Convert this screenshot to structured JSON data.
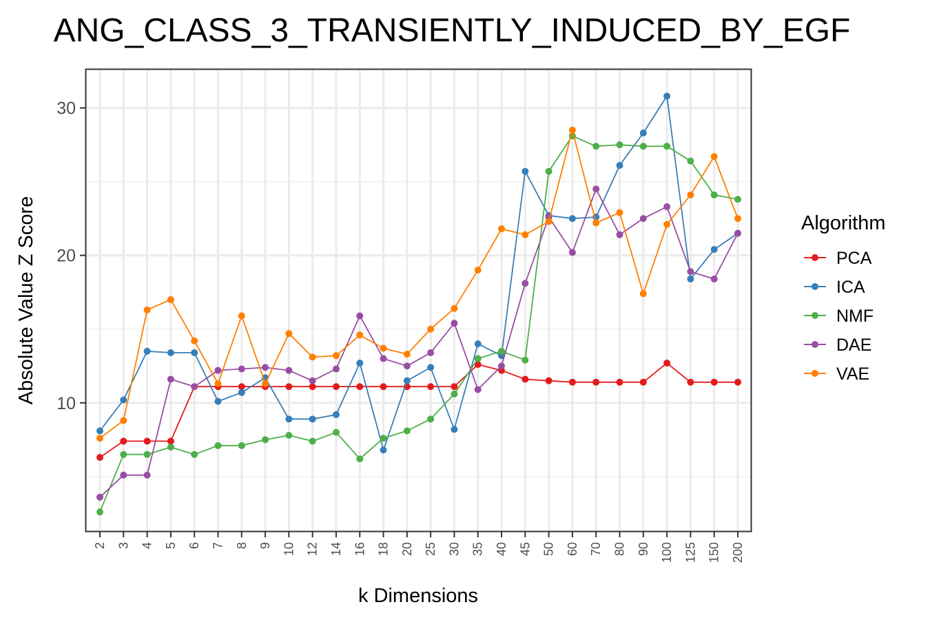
{
  "chart_data": {
    "type": "line",
    "title": "ANG_CLASS_3_TRANSIENTLY_INDUCED_BY_EGF",
    "xlabel": "k Dimensions",
    "ylabel": "Absolute Value Z Score",
    "ylim": [
      1.3,
      32.6
    ],
    "yticks": [
      10,
      20,
      30
    ],
    "grid": true,
    "legend_title": "Algorithm",
    "legend_position": "right",
    "categories": [
      "2",
      "3",
      "4",
      "5",
      "6",
      "7",
      "8",
      "9",
      "10",
      "12",
      "14",
      "16",
      "18",
      "20",
      "25",
      "30",
      "35",
      "40",
      "45",
      "50",
      "60",
      "70",
      "80",
      "90",
      "100",
      "125",
      "150",
      "200"
    ],
    "series": [
      {
        "name": "PCA",
        "color": "#E41A1C",
        "values": [
          6.3,
          7.4,
          7.4,
          7.4,
          11.1,
          11.1,
          11.1,
          11.1,
          11.1,
          11.1,
          11.1,
          11.1,
          11.1,
          11.1,
          11.1,
          11.1,
          12.6,
          12.2,
          11.6,
          11.5,
          11.4,
          11.4,
          11.4,
          11.4,
          12.7,
          11.4,
          11.4,
          11.4
        ]
      },
      {
        "name": "ICA",
        "color": "#377EB8",
        "values": [
          8.1,
          10.2,
          13.5,
          13.4,
          13.4,
          10.1,
          10.7,
          11.7,
          8.9,
          8.9,
          9.2,
          12.7,
          6.8,
          11.5,
          12.4,
          8.2,
          14.0,
          13.2,
          25.7,
          22.7,
          22.5,
          22.6,
          26.1,
          28.3,
          30.8,
          18.4,
          20.4,
          21.5
        ]
      },
      {
        "name": "NMF",
        "color": "#4DAF4A",
        "values": [
          2.6,
          6.5,
          6.5,
          7.0,
          6.5,
          7.1,
          7.1,
          7.5,
          7.8,
          7.4,
          8.0,
          6.2,
          7.6,
          8.1,
          8.9,
          10.6,
          13.0,
          13.5,
          12.9,
          25.7,
          28.1,
          27.4,
          27.5,
          27.4,
          27.4,
          26.4,
          24.1,
          23.8
        ]
      },
      {
        "name": "DAE",
        "color": "#984EA3",
        "values": [
          3.6,
          5.1,
          5.1,
          11.6,
          11.1,
          12.2,
          12.3,
          12.4,
          12.2,
          11.5,
          12.3,
          15.9,
          13.0,
          12.5,
          13.4,
          15.4,
          10.9,
          12.5,
          18.1,
          22.6,
          20.2,
          24.5,
          21.4,
          22.5,
          23.3,
          18.9,
          18.4,
          21.5
        ]
      },
      {
        "name": "VAE",
        "color": "#FF7F00",
        "values": [
          7.6,
          8.8,
          16.3,
          17.0,
          14.2,
          11.3,
          15.9,
          11.3,
          14.7,
          13.1,
          13.2,
          14.6,
          13.7,
          13.3,
          15.0,
          16.4,
          19.0,
          21.8,
          21.4,
          22.3,
          28.5,
          22.2,
          22.9,
          17.4,
          22.1,
          24.1,
          26.7,
          22.5
        ]
      }
    ]
  }
}
